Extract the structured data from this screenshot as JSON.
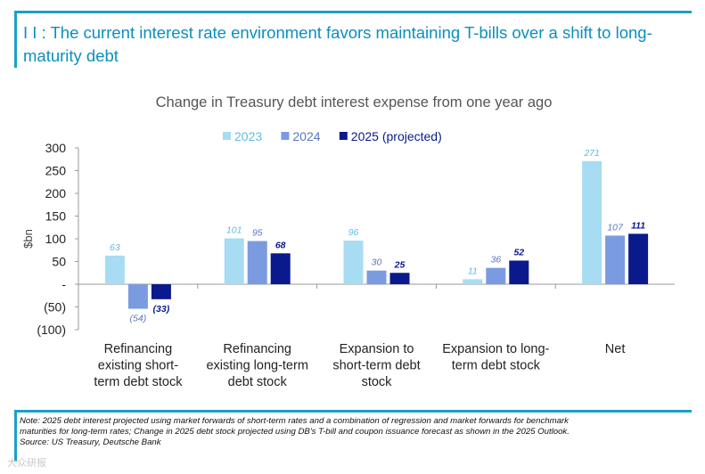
{
  "headline": "I        I : The current interest rate environment favors maintaining T-bills over a shift to long-maturity debt",
  "chart_data": {
    "type": "bar",
    "title": "Change in Treasury debt interest expense from one year ago",
    "ylabel": "$bn",
    "xlabel": "",
    "ylim": [
      -100,
      300
    ],
    "yticks": [
      300,
      250,
      200,
      150,
      100,
      50,
      0,
      -50,
      -100
    ],
    "ytick_labels": [
      "300",
      "250",
      "200",
      "150",
      "100",
      "50",
      "-",
      "(50)",
      "(100)"
    ],
    "categories": [
      [
        "Refinancing",
        "existing short-",
        "term debt stock"
      ],
      [
        "Refinancing",
        "existing long-term",
        "debt stock"
      ],
      [
        "Expansion to",
        "short-term debt",
        "stock"
      ],
      [
        "Expansion to long-",
        "term debt stock"
      ],
      [
        "Net"
      ]
    ],
    "series": [
      {
        "name": "2023",
        "color": "#a8dcf2",
        "label_color": "#5bbde6",
        "label_bold": false,
        "values": [
          63,
          101,
          96,
          11,
          271
        ],
        "labels": [
          "63",
          "101",
          "96",
          "11",
          "271"
        ]
      },
      {
        "name": "2024",
        "color": "#7b9be0",
        "label_color": "#5a75c4",
        "label_bold": false,
        "values": [
          -54,
          95,
          30,
          36,
          107
        ],
        "labels": [
          "(54)",
          "95",
          "30",
          "36",
          "107"
        ]
      },
      {
        "name": "2025 (projected)",
        "color": "#0a1a8c",
        "label_color": "#0a1a8c",
        "label_bold": true,
        "values": [
          -33,
          68,
          25,
          52,
          111
        ],
        "labels": [
          "(33)",
          "68",
          "25",
          "52",
          "111"
        ]
      }
    ],
    "legend_position": "top-center",
    "grid": false
  },
  "notes": [
    "Note: 2025 debt interest projected using market forwards of short-term rates and a combination of regression and market forwards for benchmark",
    "maturities for long-term rates; Change in 2025 debt stock projected using DB's T-bill and coupon issuance forecast as shown in the 2025 Outlook.",
    "Source: US Treasury, Deutsche Bank"
  ],
  "watermark": "大众研报"
}
